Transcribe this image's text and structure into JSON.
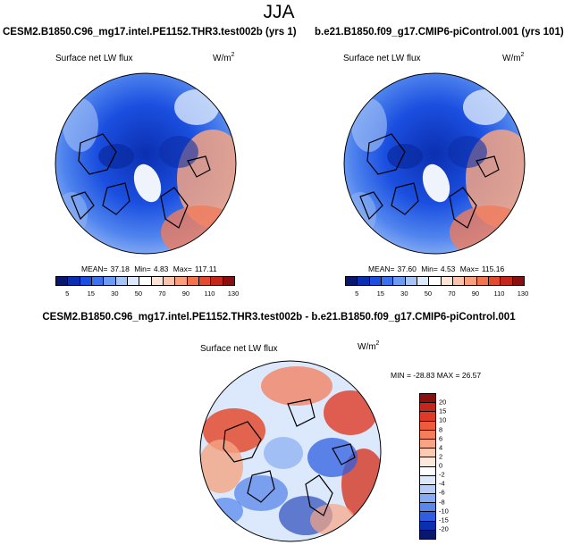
{
  "season": "JJA",
  "panel1": {
    "title": "CESM2.B1850.C96_mg17.intel.PE1152.THR3.test002b (yrs 1)",
    "variable": "Surface net LW flux",
    "units_base": "W/m",
    "units_exp": "2",
    "mean_label": "MEAN=",
    "mean": "37.18",
    "min_label": "Min=",
    "min": "4.83",
    "max_label": "Max=",
    "max": "117.11"
  },
  "panel2": {
    "title": "b.e21.B1850.f09_g17.CMIP6-piControl.001 (yrs 101)",
    "variable": "Surface net LW flux",
    "units_base": "W/m",
    "units_exp": "2",
    "mean_label": "MEAN=",
    "mean": "37.60",
    "min_label": "Min=",
    "min": "4.53",
    "max_label": "Max=",
    "max": "115.16"
  },
  "panel3": {
    "title": "CESM2.B1850.C96_mg17.intel.PE1152.THR3.test002b - b.e21.B1850.f09_g17.CMIP6-piControl.001",
    "variable": "Surface net LW flux",
    "units_base": "W/m",
    "units_exp": "2",
    "minmax": "MIN = -28.83 MAX =  26.57"
  },
  "abs_colorbar": {
    "labels": [
      "5",
      "15",
      "30",
      "50",
      "70",
      "90",
      "110",
      "130"
    ],
    "colors": [
      "#08186e",
      "#0a2fb0",
      "#1a4fe0",
      "#3a72ee",
      "#6c9bf4",
      "#a7c4f7",
      "#dce8fb",
      "#ffffff",
      "#fde4d6",
      "#fbc3aa",
      "#f89e7c",
      "#f2744f",
      "#e34b2f",
      "#c4261c",
      "#8a1010"
    ]
  },
  "diff_colorbar": {
    "labels": [
      "20",
      "15",
      "10",
      "8",
      "6",
      "4",
      "2",
      "0",
      "-2",
      "-4",
      "-6",
      "-8",
      "-10",
      "-15",
      "-20"
    ],
    "colors": [
      "#8a1010",
      "#c4261c",
      "#e03a26",
      "#ee5a3c",
      "#f47e5c",
      "#f9a585",
      "#fcc9b1",
      "#fde8dc",
      "#ffffff",
      "#dce8fb",
      "#b5cdf7",
      "#88acf2",
      "#5a87ea",
      "#2f5fe0",
      "#0a2fb0",
      "#08186e"
    ]
  }
}
